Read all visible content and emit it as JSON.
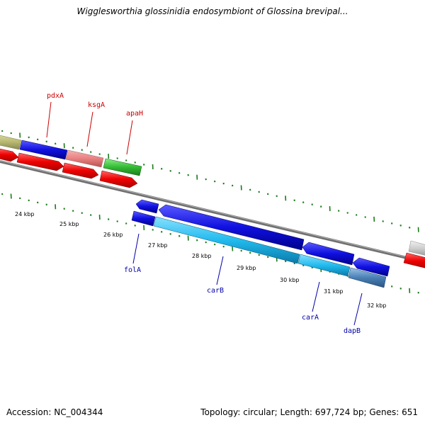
{
  "title": "Wigglesworthia glossinidia endosymbiont of Glossina brevipal...",
  "footer": {
    "accession": "Accession: NC_004344",
    "topology": "Topology: circular; Length: 697,724 bp; Genes: 651"
  },
  "colors": {
    "backbone": "#7f7f7f",
    "tick": "#1b7a1b",
    "forward_label": "#cc0000",
    "reverse_label": "#0000aa"
  },
  "scale_labels": [
    "24 kbp",
    "25 kbp",
    "26 kbp",
    "27 kbp",
    "28 kbp",
    "29 kbp",
    "30 kbp",
    "31 kbp",
    "32 kbp"
  ],
  "genes": {
    "forward": [
      {
        "name": "pdxA",
        "color": "#1010e0"
      },
      {
        "name": "ksgA",
        "color": "#e88080"
      },
      {
        "name": "apaH",
        "color": "#33bb33"
      }
    ],
    "reverse": [
      {
        "name": "folA",
        "color": "#1010e0"
      },
      {
        "name": "carB",
        "color": "#22bbee"
      },
      {
        "name": "carA",
        "color": "#22bbee"
      },
      {
        "name": "dapB",
        "color": "#4a7fb5"
      }
    ]
  }
}
